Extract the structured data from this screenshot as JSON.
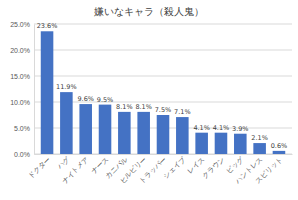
{
  "chart_data": {
    "type": "bar",
    "title": "嫌いなキャラ（殺人鬼）",
    "categories": [
      "ドクター",
      "ハグ",
      "ナイトメア",
      "ナース",
      "カニバル",
      "ヒルビリー",
      "トラッパー",
      "シェイプ",
      "レイス",
      "クラウン",
      "ピッグ",
      "ハントレス",
      "スピリット"
    ],
    "values": [
      23.6,
      11.9,
      9.6,
      9.5,
      8.1,
      8.1,
      7.5,
      7.1,
      4.1,
      4.1,
      3.9,
      2.1,
      0.6
    ],
    "value_labels": [
      "23.6%",
      "11.9%",
      "9.6%",
      "9.5%",
      "8.1%",
      "8.1%",
      "7.5%",
      "7.1%",
      "4.1%",
      "4.1%",
      "3.9%",
      "2.1%",
      "0.6%"
    ],
    "color": "#4472c4",
    "ylim": [
      0,
      25
    ],
    "yticks": [
      {
        "value": 0,
        "label": "0.0%"
      },
      {
        "value": 5,
        "label": "5.0%"
      },
      {
        "value": 10,
        "label": "10.0%"
      },
      {
        "value": 15,
        "label": "15.0%"
      },
      {
        "value": 20,
        "label": "20.0%"
      },
      {
        "value": 25,
        "label": "25.0%"
      }
    ],
    "grid": true,
    "data_labels": true
  }
}
